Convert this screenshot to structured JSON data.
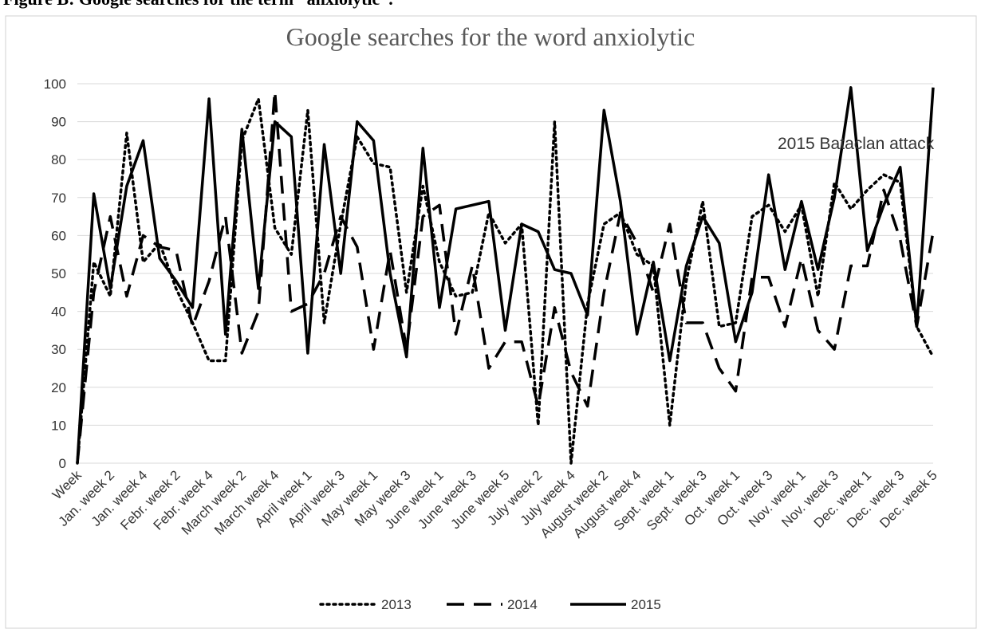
{
  "caption": "Figure B: Google searches for the term “anxiolytic”.",
  "chart_data": {
    "type": "line",
    "title": "Google searches for the word anxiolytic",
    "annotation": "2015 Bataclan attack",
    "categories": [
      "Week",
      null,
      "Jan. week 2",
      null,
      "Jan. week 4",
      null,
      "Febr. week 2",
      null,
      "Febr. week 4",
      null,
      "March week 2",
      null,
      "March week 4",
      null,
      "April week 1",
      null,
      "April week 3",
      null,
      "May week 1",
      null,
      "May week 3",
      null,
      "June week 1",
      null,
      "June week 3",
      null,
      "June week 5",
      null,
      "July week 2",
      null,
      "July week 4",
      null,
      "August week 2",
      null,
      "August week 4",
      null,
      "Sept. week 1",
      null,
      "Sept. week 3",
      null,
      "Oct. week 1",
      null,
      "Oct. week 3",
      null,
      "Nov. week 1",
      null,
      "Nov. week 3",
      null,
      "Dec. week 1",
      null,
      "Dec. week 3",
      null,
      "Dec. week 5"
    ],
    "series": [
      {
        "name": "2013",
        "color": "#000000",
        "dash": "dotted",
        "values": [
          0,
          53,
          44,
          87,
          53,
          58,
          46,
          37,
          27,
          27,
          85,
          96,
          62,
          55,
          93,
          37,
          63,
          86,
          79,
          78,
          45,
          73,
          53,
          44,
          45,
          66,
          58,
          63,
          10,
          90,
          0,
          42,
          63,
          66,
          55,
          52,
          10,
          48,
          69,
          36,
          37,
          65,
          68,
          61,
          68,
          44,
          74,
          67,
          72,
          76,
          74,
          36,
          28
        ]
      },
      {
        "name": "2014",
        "color": "#000000",
        "dash": "dashed",
        "values": [
          0,
          45,
          65,
          44,
          60,
          57,
          56,
          36,
          48,
          65,
          29,
          40,
          98,
          40,
          42,
          50,
          65,
          57,
          30,
          56,
          30,
          65,
          68,
          34,
          52,
          25,
          32,
          32,
          15,
          41,
          24,
          15,
          45,
          66,
          58,
          45,
          63,
          37,
          37,
          25,
          19,
          49,
          49,
          36,
          54,
          35,
          30,
          52,
          52,
          72,
          59,
          36,
          61
        ]
      },
      {
        "name": "2015",
        "color": "#000000",
        "dash": "solid",
        "values": [
          0,
          71,
          46,
          73,
          85,
          54,
          48,
          41,
          96,
          34,
          88,
          46,
          90,
          86,
          29,
          84,
          50,
          90,
          85,
          50,
          28,
          83,
          41,
          67,
          68,
          69,
          35,
          63,
          61,
          51,
          50,
          39,
          93,
          69,
          34,
          53,
          27,
          52,
          65,
          58,
          32,
          45,
          76,
          51,
          69,
          51,
          70,
          99,
          56,
          68,
          78,
          36,
          99
        ]
      }
    ],
    "ylim": [
      0,
      100
    ],
    "yticks": [
      0,
      10,
      20,
      30,
      40,
      50,
      60,
      70,
      80,
      90,
      100
    ],
    "grid": true,
    "legend": "bottom"
  }
}
